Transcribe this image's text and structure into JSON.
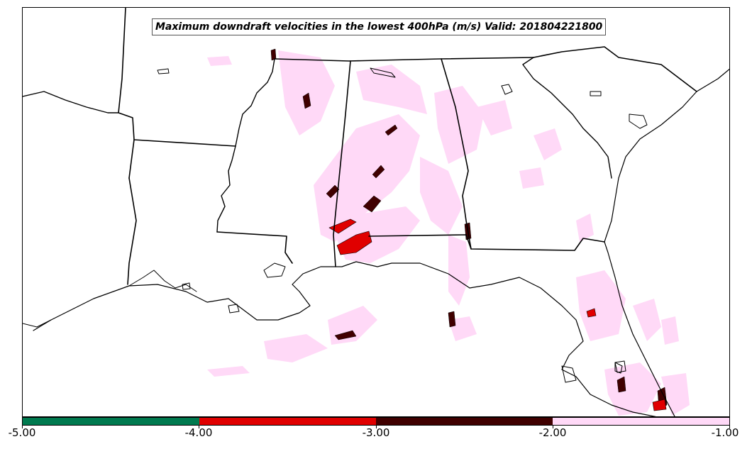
{
  "title": "Maximum downdraft velocities in the lowest 400hPa (m/s) Valid: 201804221800",
  "colorbar": {
    "segments": [
      {
        "from": -5.0,
        "to": -4.0,
        "color": "#007a4f"
      },
      {
        "from": -4.0,
        "to": -3.0,
        "color": "#e00000"
      },
      {
        "from": -3.0,
        "to": -2.0,
        "color": "#400000"
      },
      {
        "from": -2.0,
        "to": -1.0,
        "color": "#ffd9f7"
      }
    ],
    "tick_labels": [
      "-5.00",
      "-4.00",
      "-3.00",
      "-2.00",
      "-1.00"
    ]
  },
  "colors": {
    "land": "#ffffff",
    "borders": "#000000",
    "weak": "#ffd9f7",
    "moderate": "#400000",
    "strong": "#e00000",
    "extreme": "#007a4f"
  }
}
